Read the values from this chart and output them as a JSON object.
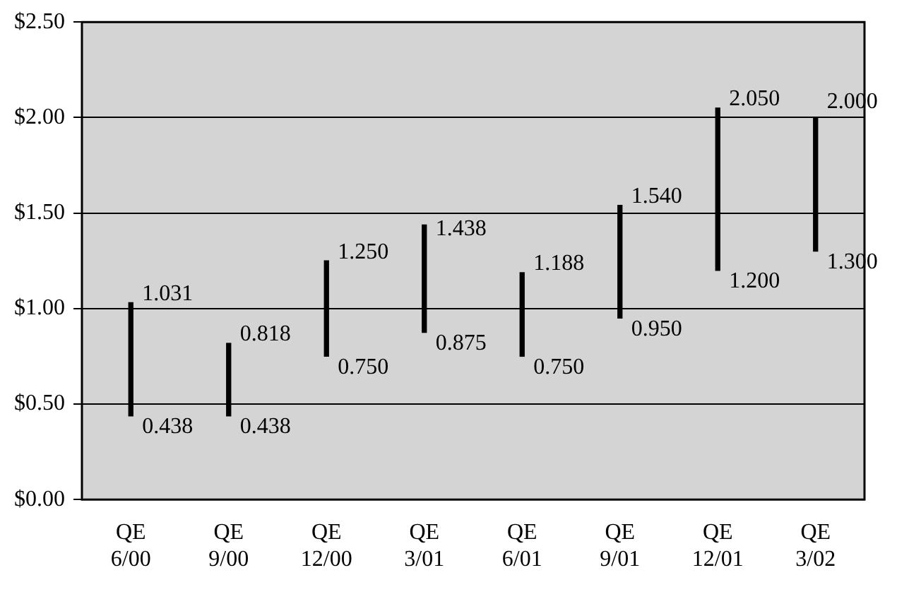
{
  "chart_data": {
    "type": "bar",
    "categories": [
      "QE 6/00",
      "QE 9/00",
      "QE 12/00",
      "QE 3/01",
      "QE 6/01",
      "QE 9/01",
      "QE 12/01",
      "QE 3/02"
    ],
    "base": [
      0.438,
      0.438,
      0.75,
      0.875,
      0.75,
      0.95,
      1.2,
      1.3
    ],
    "values": [
      0.593,
      0.38,
      0.5,
      0.563,
      0.438,
      0.59,
      0.85,
      0.7
    ],
    "color": "#000000",
    "ylim": [
      0,
      2.5
    ],
    "yticks": [
      {
        "value": 0,
        "label": "$0.00"
      },
      {
        "value": 0.5,
        "label": "$0.50"
      },
      {
        "value": 1,
        "label": "$1.00"
      },
      {
        "value": 1.5,
        "label": "$1.50"
      },
      {
        "value": 2,
        "label": "$2.00"
      },
      {
        "value": 2.5,
        "label": "$2.50"
      }
    ],
    "grid": "y",
    "legend": false,
    "annotations": [
      {
        "text": "1.031",
        "x": "QE 6/00",
        "y": 1.031
      },
      {
        "text": "0.438",
        "x": "QE 6/00",
        "y": 0.438
      },
      {
        "text": "0.818",
        "x": "QE 9/00",
        "y": 0.818
      },
      {
        "text": "0.438",
        "x": "QE 9/00",
        "y": 0.438
      },
      {
        "text": "1.250",
        "x": "QE 12/00",
        "y": 1.25
      },
      {
        "text": "0.750",
        "x": "QE 12/00",
        "y": 0.75
      },
      {
        "text": "1.438",
        "x": "QE 3/01",
        "y": 1.438
      },
      {
        "text": "0.875",
        "x": "QE 3/01",
        "y": 0.875
      },
      {
        "text": "1.188",
        "x": "QE 6/01",
        "y": 1.188
      },
      {
        "text": "0.750",
        "x": "QE 6/01",
        "y": 0.75
      },
      {
        "text": "1.540",
        "x": "QE 9/01",
        "y": 1.54
      },
      {
        "text": "0.950",
        "x": "QE 9/01",
        "y": 0.95
      },
      {
        "text": "2.050",
        "x": "QE 12/01",
        "y": 2.05
      },
      {
        "text": "1.200",
        "x": "QE 12/01",
        "y": 1.2
      },
      {
        "text": "2.000",
        "x": "QE 3/02",
        "y": 2.0
      },
      {
        "text": "1.300",
        "x": "QE 3/02",
        "y": 1.3
      }
    ]
  }
}
